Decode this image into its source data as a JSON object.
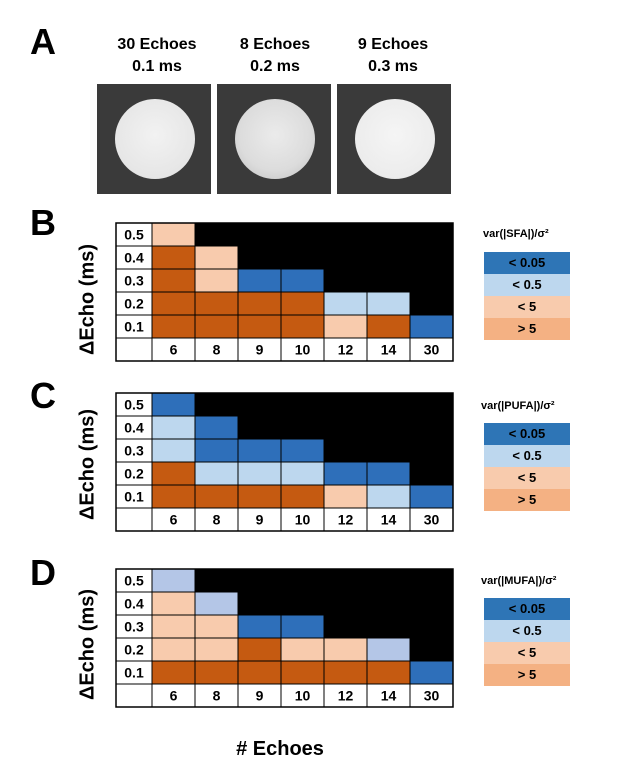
{
  "panel_labels": {
    "a": "A",
    "b": "B",
    "c": "C",
    "d": "D"
  },
  "phantoms": [
    {
      "line1": "30 Echoes",
      "line2": "0.1 ms",
      "texture": "smooth"
    },
    {
      "line1": "8 Echoes",
      "line2": "0.2 ms",
      "texture": "noisy"
    },
    {
      "line1": "9 Echoes",
      "line2": "0.3 ms",
      "texture": "smooth"
    }
  ],
  "y_axis_label": "ΔEcho (ms)",
  "x_axis_label": "# Echoes",
  "colors": {
    "dark_blue": "#2e6fba",
    "light_blue": "#bdd7ee",
    "light_orange": "#f8cbad",
    "dark_orange": "#c55a11",
    "light_purple": "#b4c6e7",
    "unavailable": "#000000",
    "legend_dark_blue": "#2e75b6",
    "legend_light_blue": "#bdd7ee",
    "legend_light_orange": "#f8cbad",
    "legend_dark_orange": "#f4b183"
  },
  "chart_data": [
    {
      "type": "heatmap",
      "panel": "B",
      "legend_title": "var(|SFA|)/σ²",
      "legend_items": [
        "< 0.05",
        "< 0.5",
        "< 5",
        "> 5"
      ],
      "x_categories": [
        "6",
        "8",
        "9",
        "10",
        "12",
        "14",
        "30"
      ],
      "y_categories": [
        "0.5",
        "0.4",
        "0.3",
        "0.2",
        "0.1"
      ],
      "cell_classes": [
        [
          "light_orange",
          "none",
          "none",
          "none",
          "none",
          "none",
          "none"
        ],
        [
          "dark_orange",
          "light_orange",
          "none",
          "none",
          "none",
          "none",
          "none"
        ],
        [
          "dark_orange",
          "light_orange",
          "dark_blue",
          "dark_blue",
          "none",
          "none",
          "none"
        ],
        [
          "dark_orange",
          "dark_orange",
          "dark_orange",
          "dark_orange",
          "light_blue",
          "light_blue",
          "none"
        ],
        [
          "dark_orange",
          "dark_orange",
          "dark_orange",
          "dark_orange",
          "light_orange",
          "dark_orange",
          "dark_blue"
        ]
      ]
    },
    {
      "type": "heatmap",
      "panel": "C",
      "legend_title": "var(|PUFA|)/σ²",
      "legend_items": [
        "< 0.05",
        "< 0.5",
        "< 5",
        "> 5"
      ],
      "x_categories": [
        "6",
        "8",
        "9",
        "10",
        "12",
        "14",
        "30"
      ],
      "y_categories": [
        "0.5",
        "0.4",
        "0.3",
        "0.2",
        "0.1"
      ],
      "cell_classes": [
        [
          "dark_blue",
          "none",
          "none",
          "none",
          "none",
          "none",
          "none"
        ],
        [
          "light_blue",
          "dark_blue",
          "none",
          "none",
          "none",
          "none",
          "none"
        ],
        [
          "light_blue",
          "dark_blue",
          "dark_blue",
          "dark_blue",
          "none",
          "none",
          "none"
        ],
        [
          "dark_orange",
          "light_blue",
          "light_blue",
          "light_blue",
          "dark_blue",
          "dark_blue",
          "none"
        ],
        [
          "dark_orange",
          "dark_orange",
          "dark_orange",
          "dark_orange",
          "light_orange",
          "light_blue",
          "dark_blue"
        ]
      ]
    },
    {
      "type": "heatmap",
      "panel": "D",
      "legend_title": "var(|MUFA|)/σ²",
      "legend_items": [
        "< 0.05",
        "< 0.5",
        "< 5",
        "> 5"
      ],
      "x_categories": [
        "6",
        "8",
        "9",
        "10",
        "12",
        "14",
        "30"
      ],
      "y_categories": [
        "0.5",
        "0.4",
        "0.3",
        "0.2",
        "0.1"
      ],
      "cell_classes": [
        [
          "light_purple",
          "none",
          "none",
          "none",
          "none",
          "none",
          "none"
        ],
        [
          "light_orange",
          "light_purple",
          "none",
          "none",
          "none",
          "none",
          "none"
        ],
        [
          "light_orange",
          "light_orange",
          "dark_blue",
          "dark_blue",
          "none",
          "none",
          "none"
        ],
        [
          "light_orange",
          "light_orange",
          "dark_orange",
          "light_orange",
          "light_orange",
          "light_purple",
          "none"
        ],
        [
          "dark_orange",
          "dark_orange",
          "dark_orange",
          "dark_orange",
          "dark_orange",
          "dark_orange",
          "dark_blue"
        ]
      ]
    }
  ]
}
